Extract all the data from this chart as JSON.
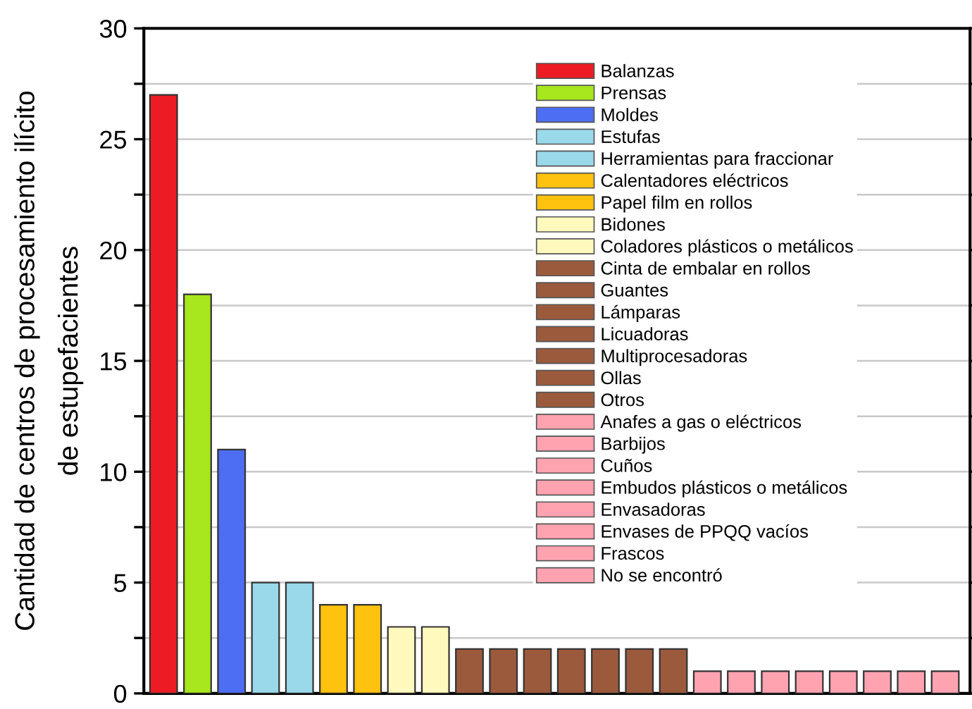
{
  "chart_data": {
    "type": "bar",
    "ylabel": "Cantidad de centros de procesamiento ilícito\nde estupefacientes",
    "categories": [
      null,
      null,
      null,
      null,
      null,
      null,
      null,
      null,
      null,
      null,
      null,
      null,
      null,
      null,
      null,
      null,
      null,
      null,
      null,
      null,
      null,
      null,
      null,
      null
    ],
    "series": [
      {
        "name": "Balanzas",
        "color": "#ed1c24",
        "values": [
          27,
          null,
          null,
          null,
          null,
          null,
          null,
          null,
          null,
          null,
          null,
          null,
          null,
          null,
          null,
          null,
          null,
          null,
          null,
          null,
          null,
          null,
          null,
          null
        ]
      },
      {
        "name": "Prensas",
        "color": "#a8e61d",
        "values": [
          null,
          18,
          null,
          null,
          null,
          null,
          null,
          null,
          null,
          null,
          null,
          null,
          null,
          null,
          null,
          null,
          null,
          null,
          null,
          null,
          null,
          null,
          null,
          null
        ]
      },
      {
        "name": "Moldes",
        "color": "#4d6df3",
        "values": [
          null,
          null,
          11,
          null,
          null,
          null,
          null,
          null,
          null,
          null,
          null,
          null,
          null,
          null,
          null,
          null,
          null,
          null,
          null,
          null,
          null,
          null,
          null,
          null
        ]
      },
      {
        "name": "Estufas",
        "color": "#99d9ea",
        "values": [
          null,
          null,
          null,
          5,
          null,
          null,
          null,
          null,
          null,
          null,
          null,
          null,
          null,
          null,
          null,
          null,
          null,
          null,
          null,
          null,
          null,
          null,
          null,
          null
        ]
      },
      {
        "name": "Herramientas para fraccionar",
        "color": "#99d9ea",
        "values": [
          null,
          null,
          null,
          null,
          5,
          null,
          null,
          null,
          null,
          null,
          null,
          null,
          null,
          null,
          null,
          null,
          null,
          null,
          null,
          null,
          null,
          null,
          null,
          null
        ]
      },
      {
        "name": "Calentadores eléctricos",
        "color": "#ffc20e",
        "values": [
          null,
          null,
          null,
          null,
          null,
          4,
          null,
          null,
          null,
          null,
          null,
          null,
          null,
          null,
          null,
          null,
          null,
          null,
          null,
          null,
          null,
          null,
          null,
          null
        ]
      },
      {
        "name": "Papel film en rollos",
        "color": "#ffc20e",
        "values": [
          null,
          null,
          null,
          null,
          null,
          null,
          4,
          null,
          null,
          null,
          null,
          null,
          null,
          null,
          null,
          null,
          null,
          null,
          null,
          null,
          null,
          null,
          null,
          null
        ]
      },
      {
        "name": "Bidones",
        "color": "#fff9bd",
        "values": [
          null,
          null,
          null,
          null,
          null,
          null,
          null,
          3,
          null,
          null,
          null,
          null,
          null,
          null,
          null,
          null,
          null,
          null,
          null,
          null,
          null,
          null,
          null,
          null
        ]
      },
      {
        "name": "Coladores plásticos o metálicos",
        "color": "#fff9bd",
        "values": [
          null,
          null,
          null,
          null,
          null,
          null,
          null,
          null,
          3,
          null,
          null,
          null,
          null,
          null,
          null,
          null,
          null,
          null,
          null,
          null,
          null,
          null,
          null,
          null
        ]
      },
      {
        "name": "Cinta de embalar en rollos",
        "color": "#9c5a3c",
        "values": [
          null,
          null,
          null,
          null,
          null,
          null,
          null,
          null,
          null,
          2,
          null,
          null,
          null,
          null,
          null,
          null,
          null,
          null,
          null,
          null,
          null,
          null,
          null,
          null
        ]
      },
      {
        "name": "Guantes",
        "color": "#9c5a3c",
        "values": [
          null,
          null,
          null,
          null,
          null,
          null,
          null,
          null,
          null,
          null,
          2,
          null,
          null,
          null,
          null,
          null,
          null,
          null,
          null,
          null,
          null,
          null,
          null,
          null
        ]
      },
      {
        "name": "Lámparas",
        "color": "#9c5a3c",
        "values": [
          null,
          null,
          null,
          null,
          null,
          null,
          null,
          null,
          null,
          null,
          null,
          2,
          null,
          null,
          null,
          null,
          null,
          null,
          null,
          null,
          null,
          null,
          null,
          null
        ]
      },
      {
        "name": "Licuadoras",
        "color": "#9c5a3c",
        "values": [
          null,
          null,
          null,
          null,
          null,
          null,
          null,
          null,
          null,
          null,
          null,
          null,
          2,
          null,
          null,
          null,
          null,
          null,
          null,
          null,
          null,
          null,
          null,
          null
        ]
      },
      {
        "name": "Multiprocesadoras",
        "color": "#9c5a3c",
        "values": [
          null,
          null,
          null,
          null,
          null,
          null,
          null,
          null,
          null,
          null,
          null,
          null,
          null,
          2,
          null,
          null,
          null,
          null,
          null,
          null,
          null,
          null,
          null,
          null
        ]
      },
      {
        "name": "Ollas",
        "color": "#9c5a3c",
        "values": [
          null,
          null,
          null,
          null,
          null,
          null,
          null,
          null,
          null,
          null,
          null,
          null,
          null,
          null,
          2,
          null,
          null,
          null,
          null,
          null,
          null,
          null,
          null,
          null
        ]
      },
      {
        "name": "Otros",
        "color": "#9c5a3c",
        "values": [
          null,
          null,
          null,
          null,
          null,
          null,
          null,
          null,
          null,
          null,
          null,
          null,
          null,
          null,
          null,
          2,
          null,
          null,
          null,
          null,
          null,
          null,
          null,
          null
        ]
      },
      {
        "name": "Anafes a gas o eléctricos",
        "color": "#ffa3b1",
        "values": [
          null,
          null,
          null,
          null,
          null,
          null,
          null,
          null,
          null,
          null,
          null,
          null,
          null,
          null,
          null,
          null,
          1,
          null,
          null,
          null,
          null,
          null,
          null,
          null
        ]
      },
      {
        "name": "Barbijos",
        "color": "#ffa3b1",
        "values": [
          null,
          null,
          null,
          null,
          null,
          null,
          null,
          null,
          null,
          null,
          null,
          null,
          null,
          null,
          null,
          null,
          null,
          1,
          null,
          null,
          null,
          null,
          null,
          null
        ]
      },
      {
        "name": "Cuños",
        "color": "#ffa3b1",
        "values": [
          null,
          null,
          null,
          null,
          null,
          null,
          null,
          null,
          null,
          null,
          null,
          null,
          null,
          null,
          null,
          null,
          null,
          null,
          1,
          null,
          null,
          null,
          null,
          null
        ]
      },
      {
        "name": "Embudos plásticos o metálicos",
        "color": "#ffa3b1",
        "values": [
          null,
          null,
          null,
          null,
          null,
          null,
          null,
          null,
          null,
          null,
          null,
          null,
          null,
          null,
          null,
          null,
          null,
          null,
          null,
          1,
          null,
          null,
          null,
          null
        ]
      },
      {
        "name": "Envasadoras",
        "color": "#ffa3b1",
        "values": [
          null,
          null,
          null,
          null,
          null,
          null,
          null,
          null,
          null,
          null,
          null,
          null,
          null,
          null,
          null,
          null,
          null,
          null,
          null,
          null,
          1,
          null,
          null,
          null
        ]
      },
      {
        "name": "Envases de PPQQ vacíos",
        "color": "#ffa3b1",
        "values": [
          null,
          null,
          null,
          null,
          null,
          null,
          null,
          null,
          null,
          null,
          null,
          null,
          null,
          null,
          null,
          null,
          null,
          null,
          null,
          null,
          null,
          1,
          null,
          null
        ]
      },
      {
        "name": "Frascos",
        "color": "#ffa3b1",
        "values": [
          null,
          null,
          null,
          null,
          null,
          null,
          null,
          null,
          null,
          null,
          null,
          null,
          null,
          null,
          null,
          null,
          null,
          null,
          null,
          null,
          null,
          null,
          1,
          null
        ]
      },
      {
        "name": "No se encontró",
        "color": "#ffa3b1",
        "values": [
          null,
          null,
          null,
          null,
          null,
          null,
          null,
          null,
          null,
          null,
          null,
          null,
          null,
          null,
          null,
          null,
          null,
          null,
          null,
          null,
          null,
          null,
          null,
          1
        ]
      }
    ],
    "ylim": [
      0,
      30
    ],
    "yticks": [
      0,
      {
        "value": 2.5,
        "label": null
      },
      5,
      {
        "value": 7.5,
        "label": null
      },
      10,
      {
        "value": 12.5,
        "label": null
      },
      15,
      {
        "value": 17.5,
        "label": null
      },
      20,
      {
        "value": 22.5,
        "label": null
      },
      25,
      {
        "value": 27.5,
        "label": null
      },
      30
    ],
    "grid": "y",
    "legend": "right",
    "tick_labels": "y"
  }
}
